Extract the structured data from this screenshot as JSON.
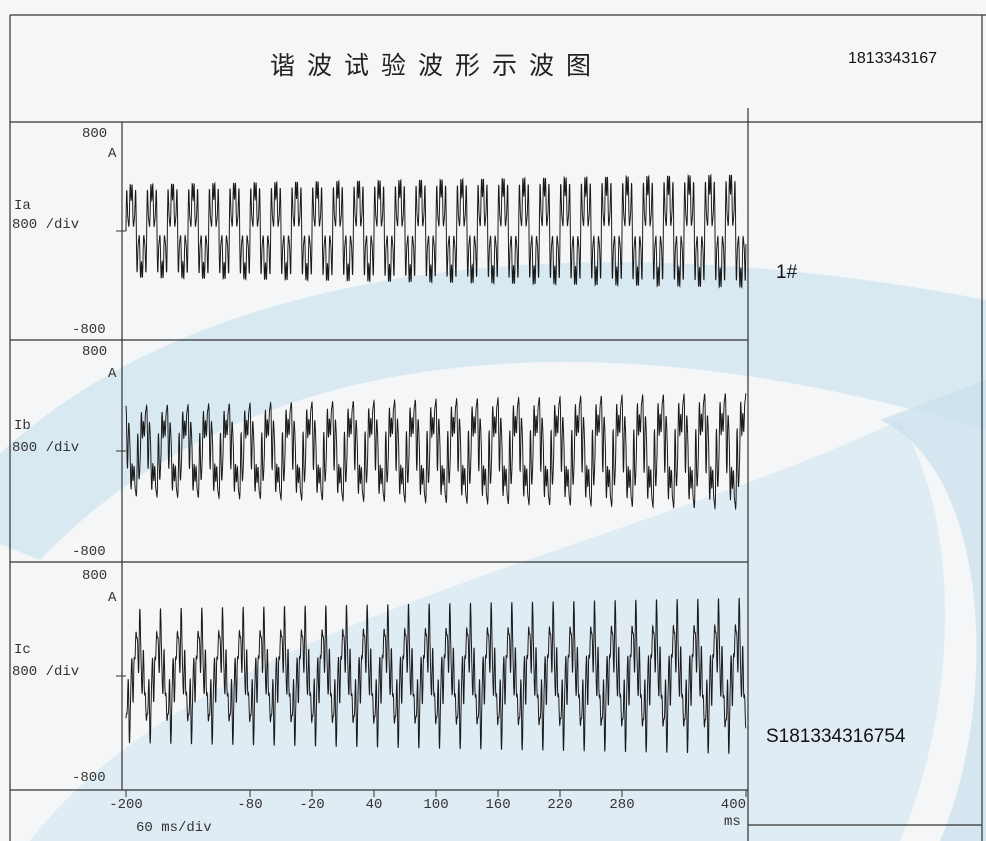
{
  "header": {
    "title": "谐波试验波形示波图",
    "serial_top": "1813343167"
  },
  "side": {
    "tag": "1#",
    "serial_bottom": "S181334316754"
  },
  "chart_data": {
    "type": "line",
    "x_unit": "ms",
    "x_scale_label": "60 ms/div",
    "xlim": [
      -200,
      400
    ],
    "x_tick_labels": [
      "-200",
      "-80",
      "-20",
      "40",
      "100",
      "160",
      "220",
      "280",
      "400"
    ],
    "fundamental_hz": 50,
    "channels": [
      {
        "name": "Ia",
        "unit": "A",
        "scale": "800 /div",
        "ymax_label": "800",
        "ymin_label": "-800",
        "ylim": [
          -800,
          800
        ],
        "amplitude_start": 460,
        "amplitude_end": 560
      },
      {
        "name": "Ib",
        "unit": "A",
        "scale": "800 /div",
        "ymax_label": "800",
        "ymin_label": "-800",
        "ylim": [
          -800,
          800
        ],
        "amplitude_start": 420,
        "amplitude_end": 540
      },
      {
        "name": "Ic",
        "unit": "A",
        "scale": "800 /div",
        "ymax_label": "800",
        "ymin_label": "-800",
        "ylim": [
          -800,
          800
        ],
        "amplitude_start": 480,
        "amplitude_end": 560
      }
    ],
    "colors": {
      "trace": "#1a1a1a",
      "watermark": "#cfe3ee",
      "border": "#333333"
    }
  }
}
